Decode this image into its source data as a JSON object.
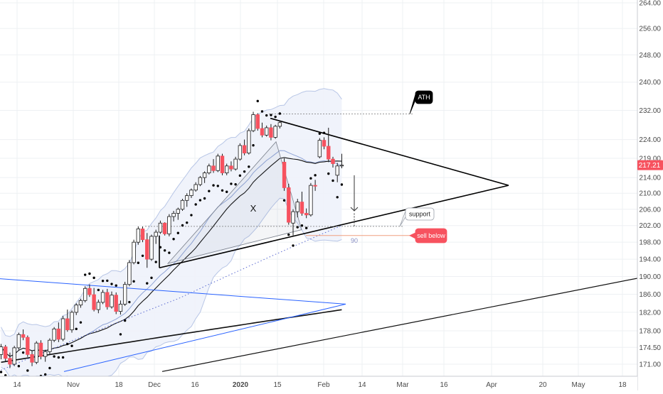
{
  "chart_data": {
    "type": "candlestick",
    "price_axis": {
      "ticks": [
        264.0,
        256.0,
        248.0,
        240.0,
        232.0,
        224.0,
        219.0,
        214.0,
        210.0,
        206.0,
        202.0,
        198.0,
        194.0,
        190.0,
        186.0,
        182.0,
        178.0,
        174.5,
        171.0
      ],
      "tick_labels": [
        "264.00",
        "256.00",
        "248.00",
        "240.00",
        "232.00",
        "224.00",
        "219.00",
        "214.00",
        "210.00",
        "206.00",
        "202.00",
        "198.00",
        "194.00",
        "190.00",
        "186.00",
        "182.00",
        "178.00",
        "174.50",
        "171.00"
      ],
      "scale": "log",
      "range": [
        169.5,
        264.0
      ]
    },
    "time_axis": {
      "labels": [
        "14",
        "Nov",
        "18",
        "Dec",
        "16",
        "2020",
        "15",
        "Feb",
        "14",
        "Mar",
        "16",
        "Apr",
        "20",
        "May",
        "18"
      ],
      "bold": [
        "2020"
      ]
    },
    "last_price": {
      "value": 217.21,
      "label": "217.21",
      "color": "#f7525f"
    },
    "colors": {
      "up": "#ffffff",
      "down": "#f7525f",
      "wick": "#1a1a1a",
      "band_fill": "#eef2fb",
      "band_line": "#b8c6e6",
      "sar": "#000000",
      "blue_line": "#2962ff",
      "callout_red": "#f7525f",
      "callout_black": "#000000"
    },
    "candles": [
      [
        173.0,
        175.2,
        172.0,
        174.6
      ],
      [
        174.6,
        175.0,
        171.5,
        172.2
      ],
      [
        172.2,
        173.4,
        170.2,
        171.0
      ],
      [
        171.0,
        174.8,
        170.6,
        174.4
      ],
      [
        174.4,
        177.6,
        174.0,
        177.2
      ],
      [
        177.2,
        178.3,
        176.0,
        176.6
      ],
      [
        176.6,
        177.0,
        172.5,
        173.0
      ],
      [
        173.0,
        173.8,
        170.6,
        171.4
      ],
      [
        171.4,
        175.8,
        171.0,
        175.4
      ],
      [
        175.4,
        176.0,
        172.0,
        172.6
      ],
      [
        172.6,
        174.0,
        171.5,
        173.6
      ],
      [
        173.6,
        176.4,
        173.0,
        176.0
      ],
      [
        176.0,
        178.8,
        175.6,
        178.4
      ],
      [
        178.4,
        179.8,
        175.6,
        176.2
      ],
      [
        176.2,
        181.2,
        175.8,
        180.6
      ],
      [
        180.6,
        182.6,
        177.8,
        178.2
      ],
      [
        178.2,
        182.4,
        177.6,
        182.0
      ],
      [
        182.0,
        184.0,
        181.4,
        183.6
      ],
      [
        183.6,
        185.0,
        183.0,
        184.6
      ],
      [
        184.6,
        187.8,
        184.2,
        187.3
      ],
      [
        187.3,
        188.2,
        185.4,
        185.9
      ],
      [
        185.9,
        187.4,
        182.2,
        182.6
      ],
      [
        182.6,
        184.8,
        181.8,
        184.2
      ],
      [
        184.2,
        187.0,
        183.8,
        186.4
      ],
      [
        186.4,
        187.2,
        182.6,
        183.2
      ],
      [
        183.2,
        186.6,
        182.8,
        185.8
      ],
      [
        185.8,
        186.4,
        181.6,
        182.2
      ],
      [
        182.2,
        184.6,
        181.5,
        183.8
      ],
      [
        183.8,
        188.8,
        183.4,
        188.2
      ],
      [
        188.2,
        193.8,
        187.8,
        193.2
      ],
      [
        193.2,
        198.6,
        192.8,
        198.0
      ],
      [
        198.0,
        201.8,
        197.4,
        201.2
      ],
      [
        201.2,
        201.8,
        198.0,
        198.6
      ],
      [
        198.6,
        200.2,
        192.0,
        194.0
      ],
      [
        194.0,
        199.8,
        193.6,
        199.4
      ],
      [
        199.4,
        201.0,
        197.6,
        200.4
      ],
      [
        200.4,
        203.2,
        200.0,
        202.6
      ],
      [
        202.6,
        202.8,
        199.6,
        200.0
      ],
      [
        200.0,
        204.8,
        199.4,
        204.2
      ],
      [
        204.2,
        205.6,
        203.0,
        205.0
      ],
      [
        205.0,
        206.4,
        203.4,
        206.0
      ],
      [
        206.0,
        208.6,
        205.6,
        208.2
      ],
      [
        208.2,
        210.0,
        206.6,
        209.4
      ],
      [
        209.4,
        211.2,
        208.8,
        210.8
      ],
      [
        210.8,
        212.8,
        210.4,
        212.2
      ],
      [
        212.2,
        214.4,
        211.8,
        214.0
      ],
      [
        214.0,
        215.6,
        212.6,
        215.2
      ],
      [
        215.2,
        217.6,
        214.8,
        217.0
      ],
      [
        217.0,
        218.8,
        215.2,
        215.8
      ],
      [
        215.8,
        220.2,
        215.4,
        219.6
      ],
      [
        219.6,
        220.2,
        214.6,
        215.2
      ],
      [
        215.2,
        217.6,
        214.6,
        217.0
      ],
      [
        217.0,
        218.2,
        215.6,
        216.2
      ],
      [
        216.2,
        219.4,
        215.8,
        218.8
      ],
      [
        218.8,
        223.0,
        218.4,
        222.4
      ],
      [
        222.4,
        224.0,
        219.8,
        220.4
      ],
      [
        220.4,
        227.0,
        220.0,
        226.4
      ],
      [
        226.4,
        231.6,
        226.0,
        230.8
      ],
      [
        230.8,
        231.2,
        226.4,
        227.0
      ],
      [
        227.0,
        228.6,
        224.6,
        225.2
      ],
      [
        225.2,
        227.8,
        224.8,
        227.2
      ],
      [
        227.2,
        228.2,
        223.8,
        224.6
      ],
      [
        224.6,
        228.0,
        224.2,
        227.6
      ],
      [
        227.6,
        229.2,
        227.0,
        228.6
      ],
      [
        218.0,
        219.0,
        210.6,
        211.4
      ],
      [
        211.4,
        212.4,
        202.2,
        202.8
      ],
      [
        202.6,
        206.0,
        199.6,
        205.4
      ],
      [
        205.4,
        208.6,
        204.0,
        207.8
      ],
      [
        207.8,
        210.4,
        204.4,
        205.0
      ],
      [
        205.0,
        206.2,
        203.8,
        204.6
      ],
      [
        204.6,
        212.6,
        204.2,
        212.0
      ],
      [
        212.0,
        213.4,
        210.6,
        211.8
      ],
      [
        219.4,
        224.4,
        219.0,
        223.8
      ],
      [
        223.8,
        224.6,
        221.4,
        222.2
      ],
      [
        222.2,
        227.2,
        218.0,
        218.8
      ],
      [
        218.8,
        219.4,
        216.6,
        217.6
      ],
      [
        214.6,
        217.8,
        212.8,
        217.0
      ],
      [
        217.0,
        220.2,
        216.4,
        217.21
      ]
    ],
    "annotations": {
      "callouts": [
        "ATH",
        "support",
        "sell below"
      ],
      "pattern_label": "X",
      "level_label": "90"
    },
    "indicators": [
      "bollinger_bands",
      "moving_averages",
      "parabolic_sar"
    ]
  }
}
